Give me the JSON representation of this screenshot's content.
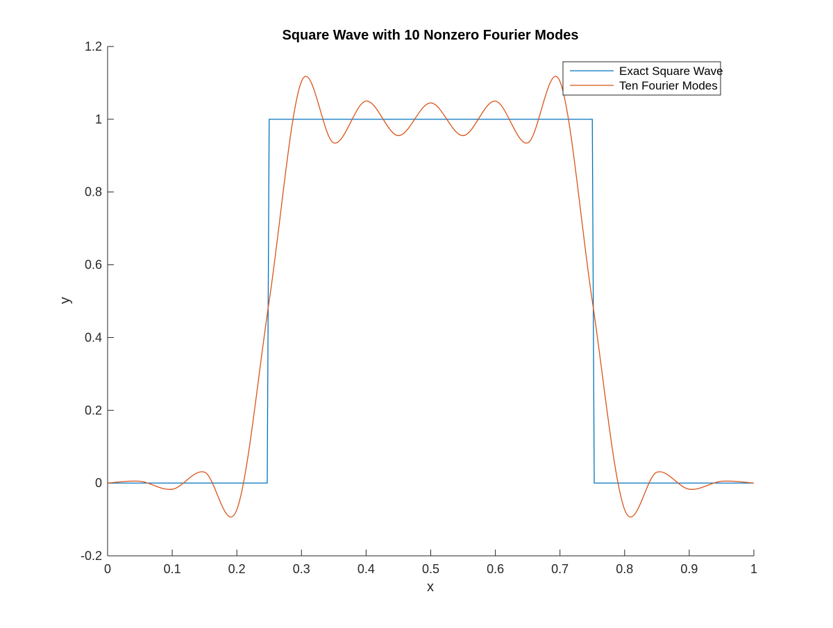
{
  "chart_data": {
    "type": "line",
    "title": "Square Wave with 10 Nonzero Fourier Modes",
    "xlabel": "x",
    "ylabel": "y",
    "xlim": [
      0,
      1
    ],
    "ylim": [
      -0.2,
      1.2
    ],
    "xticks": [
      "0",
      "0.1",
      "0.2",
      "0.3",
      "0.4",
      "0.5",
      "0.6",
      "0.7",
      "0.8",
      "0.9",
      "1"
    ],
    "yticks": [
      "-0.2",
      "0",
      "0.2",
      "0.4",
      "0.6",
      "0.8",
      "1",
      "1.2"
    ],
    "grid": false,
    "legend_position": "top-right",
    "series": [
      {
        "name": "Exact Square Wave",
        "color": "#0072BD",
        "x": [
          0,
          0.247,
          0.25,
          0.75,
          0.753,
          1
        ],
        "y": [
          0,
          0,
          1,
          1,
          0,
          0
        ]
      },
      {
        "name": "Ten Fourier Modes",
        "color": "#D95319",
        "x": [
          0,
          0.05,
          0.1,
          0.15,
          0.2,
          0.25,
          0.3,
          0.35,
          0.4,
          0.45,
          0.5,
          0.55,
          0.6,
          0.65,
          0.7,
          0.75,
          0.8,
          0.85,
          0.9,
          0.95,
          1
        ],
        "y": [
          0,
          0.005,
          -0.017,
          0.03,
          -0.073,
          0.5,
          1.104,
          0.935,
          1.05,
          0.955,
          1.045,
          0.955,
          1.05,
          0.935,
          1.104,
          0.5,
          -0.073,
          0.03,
          -0.017,
          0.005,
          0
        ]
      }
    ]
  }
}
